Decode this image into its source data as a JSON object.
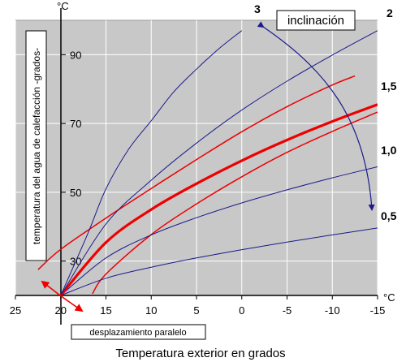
{
  "chart_data": {
    "type": "line",
    "xlabel": "Temperatura exterior en grados",
    "ylabel": "temperatura del agua de calefacción -grados-",
    "y_unit": "°C",
    "x_unit": "°C",
    "xlim": [
      25,
      -15
    ],
    "ylim": [
      20,
      100
    ],
    "x_ticks": [
      25,
      20,
      15,
      10,
      5,
      0,
      -5,
      -10,
      -15
    ],
    "x_tick_labels": [
      "25",
      "20",
      "15",
      "10",
      "5",
      "0",
      "-5",
      "-10",
      "-15"
    ],
    "y_ticks": [
      30,
      50,
      70,
      90
    ],
    "y_tick_labels": [
      "30",
      "50",
      "70",
      "90"
    ],
    "grid": true,
    "series": [
      {
        "name": "0,5",
        "color": "#1a1a8c",
        "points": [
          [
            20,
            20
          ],
          [
            15,
            25
          ],
          [
            10,
            28.2
          ],
          [
            5,
            30.9
          ],
          [
            0,
            33.3
          ],
          [
            -5,
            35.5
          ],
          [
            -10,
            37.6
          ],
          [
            -15,
            39.6
          ]
        ]
      },
      {
        "name": "1,0",
        "color": "#1a1a8c",
        "points": [
          [
            20,
            20
          ],
          [
            15,
            30.9
          ],
          [
            10,
            37.6
          ],
          [
            5,
            42.6
          ],
          [
            0,
            46.9
          ],
          [
            -5,
            50.7
          ],
          [
            -10,
            54.2
          ],
          [
            -15,
            57.4
          ]
        ]
      },
      {
        "name": "1,5",
        "color": "#ee0000",
        "points": [
          [
            20,
            20
          ],
          [
            15,
            35.4
          ],
          [
            10,
            45
          ],
          [
            5,
            52.5
          ],
          [
            0,
            59.2
          ],
          [
            -5,
            65.2
          ],
          [
            -10,
            70.6
          ],
          [
            -15,
            75.5
          ]
        ]
      },
      {
        "name": "2",
        "color": "#1a1a8c",
        "points": [
          [
            20,
            20
          ],
          [
            15,
            40.8
          ],
          [
            10,
            53.5
          ],
          [
            5,
            64.3
          ],
          [
            0,
            73.9
          ],
          [
            -5,
            82.3
          ],
          [
            -10,
            89.9
          ],
          [
            -15,
            97
          ]
        ]
      },
      {
        "name": "3",
        "color": "#1a1a8c",
        "points": [
          [
            20,
            20
          ],
          [
            17,
            38
          ],
          [
            15,
            51
          ],
          [
            12.5,
            62.5
          ],
          [
            10,
            70.8
          ],
          [
            7.5,
            79.2
          ],
          [
            5,
            85.8
          ],
          [
            2.5,
            91.8
          ],
          [
            0,
            97
          ]
        ]
      }
    ],
    "shifted_series": [
      {
        "color": "#ee0000",
        "points": [
          [
            22.5,
            27.5
          ],
          [
            20,
            33.4
          ],
          [
            15,
            42.5
          ],
          [
            10,
            51.1
          ],
          [
            5,
            59.5
          ],
          [
            0,
            67.6
          ],
          [
            -5,
            74.9
          ],
          [
            -10,
            81.2
          ],
          [
            -12.5,
            83.8
          ]
        ]
      },
      {
        "color": "#ee0000",
        "points": [
          [
            16.5,
            20.5
          ],
          [
            15,
            26.2
          ],
          [
            10,
            37.7
          ],
          [
            5,
            46.6
          ],
          [
            0,
            54.5
          ],
          [
            -5,
            61.6
          ],
          [
            -10,
            67.7
          ],
          [
            -15,
            73.3
          ]
        ]
      }
    ],
    "annotations": {
      "inclinacion": "inclinación",
      "desplazamiento": "desplazamiento paralelo"
    }
  }
}
